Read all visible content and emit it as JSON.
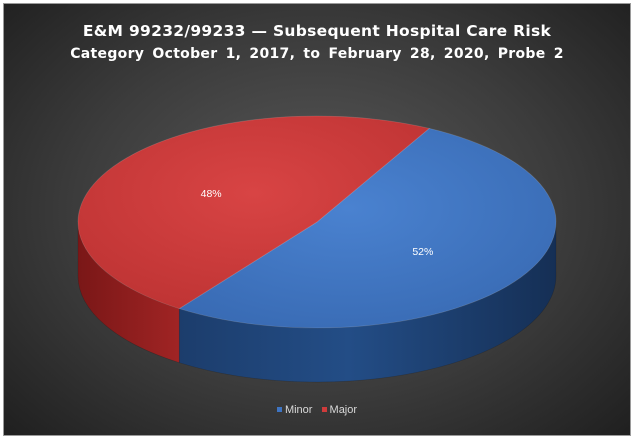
{
  "chart_data": {
    "type": "pie",
    "title": "E&M 99232/99233 — Subsequent Hospital Care Risk",
    "subtitle": "Category  October  1,  2017,  to  February  28,  2020,  Probe  2",
    "categories": [
      "Minor",
      "Major"
    ],
    "values": [
      52,
      48
    ],
    "data_labels": [
      "52%",
      "48%"
    ],
    "colors": [
      "#3e74c2",
      "#cf3b3b"
    ],
    "legend_position": "bottom",
    "style": "3d"
  }
}
